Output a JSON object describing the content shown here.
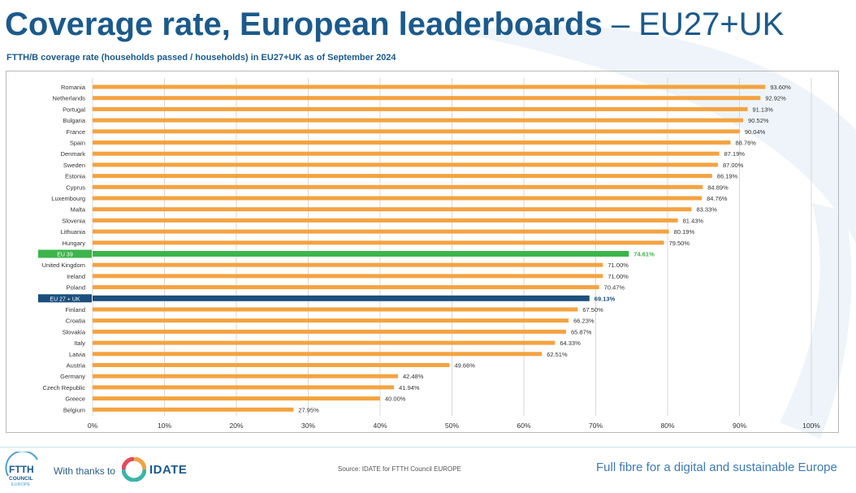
{
  "header": {
    "title_bold": "Coverage rate, European leaderboards",
    "title_light": " – EU27+UK",
    "subtitle": "FTTH/B coverage rate (households passed / households) in EU27+UK as of September 2024"
  },
  "colors": {
    "bar": "#f4a340",
    "eu39": "#3cb54a",
    "eu27uk": "#1b4f7e",
    "title": "#1b5a8c"
  },
  "chart_data": {
    "type": "bar",
    "orientation": "horizontal",
    "title": "FTTH/B coverage rate (households passed / households) in EU27+UK as of September 2024",
    "xlabel": "",
    "ylabel": "",
    "xlim": [
      0,
      100
    ],
    "x_ticks": [
      "0%",
      "10%",
      "20%",
      "30%",
      "40%",
      "50%",
      "60%",
      "70%",
      "80%",
      "90%",
      "100%"
    ],
    "grid": true,
    "categories": [
      "Romania",
      "Netherlands",
      "Portugal",
      "Bulgaria",
      "France",
      "Spain",
      "Denmark",
      "Sweden",
      "Estonia",
      "Cyprus",
      "Luxembourg",
      "Malta",
      "Slovenia",
      "Lithuania",
      "Hungary",
      "EU 39",
      "United Kingdom",
      "Ireland",
      "Poland",
      "EU 27 + UK",
      "Finland",
      "Croatia",
      "Slovakia",
      "Italy",
      "Latvia",
      "Austria",
      "Germany",
      "Czech Republic",
      "Greece",
      "Belgium"
    ],
    "values": [
      93.6,
      92.92,
      91.13,
      90.52,
      90.04,
      88.76,
      87.19,
      87.0,
      86.19,
      84.89,
      84.76,
      83.33,
      81.43,
      80.19,
      79.5,
      74.61,
      71.0,
      71.0,
      70.47,
      69.13,
      67.5,
      66.23,
      65.87,
      64.33,
      62.51,
      49.66,
      42.48,
      41.94,
      40.0,
      27.95
    ],
    "labels": [
      "93.60%",
      "92.92%",
      "91.13%",
      "90.52%",
      "90.04%",
      "88.76%",
      "87.19%",
      "87.00%",
      "86.19%",
      "84.89%",
      "84.76%",
      "83.33%",
      "81.43%",
      "80.19%",
      "79.50%",
      "74.61%",
      "71.00%",
      "71.00%",
      "70.47%",
      "69.13%",
      "67.50%",
      "66.23%",
      "65.87%",
      "64.33%",
      "62.51%",
      "49.66%",
      "42.48%",
      "41.94%",
      "40.00%",
      "27.95%"
    ],
    "highlights": {
      "EU 39": "eu39",
      "EU 27 + UK": "eu27uk"
    }
  },
  "footer": {
    "ftth_logo_text": "FTTH",
    "ftth_logo_sub": "COUNCIL",
    "ftth_logo_region": "EUROPE",
    "thanks": "With thanks to",
    "idate": "IDATE",
    "source": "Source: IDATE for FTTH Council EUROPE",
    "tagline": "Full fibre for a digital and sustainable Europe"
  }
}
